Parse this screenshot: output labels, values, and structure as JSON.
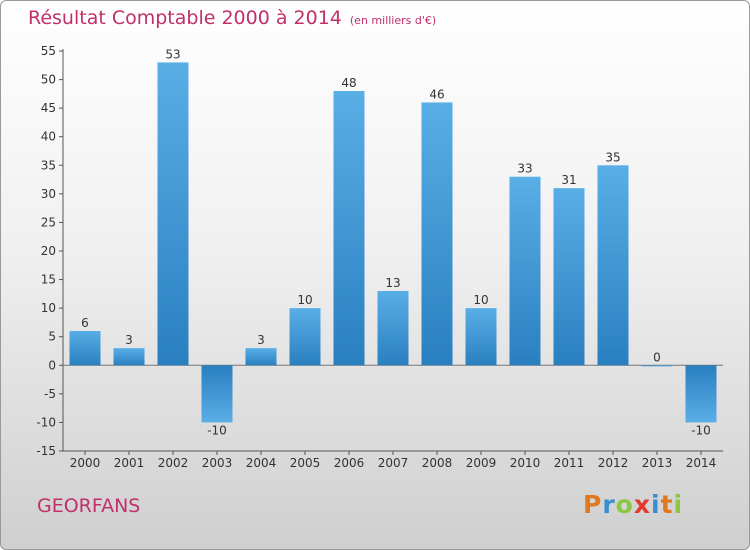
{
  "title": "Résultat Comptable 2000 à 2014",
  "subtitle": "(en milliers d'€)",
  "commune": "GEORFANS",
  "logo": {
    "letters": [
      "P",
      "r",
      "o",
      "x",
      "i",
      "t",
      "i"
    ],
    "colors": [
      "#e07820",
      "#3a8ed0",
      "#8dc63f",
      "#e23a2e",
      "#3a8ed0",
      "#e07820",
      "#8dc63f"
    ]
  },
  "colors": {
    "bar_light": "#5aaee6",
    "bar_dark": "#2a7fc0",
    "title": "#c0306a"
  },
  "chart_data": {
    "type": "bar",
    "title": "Résultat Comptable 2000 à 2014",
    "xlabel": "",
    "ylabel": "",
    "ylim": [
      -15,
      55
    ],
    "yticks": [
      -15,
      -10,
      -5,
      0,
      5,
      10,
      15,
      20,
      25,
      30,
      35,
      40,
      45,
      50,
      55
    ],
    "ytick_labels": [
      "-15",
      "-10",
      "-5",
      "0",
      "5",
      "10",
      "15",
      "20",
      "25",
      "30",
      "35",
      "40",
      "45",
      "50",
      "55"
    ],
    "categories": [
      "2000",
      "2001",
      "2002",
      "2003",
      "2004",
      "2005",
      "2006",
      "2007",
      "2008",
      "2009",
      "2010",
      "2011",
      "2012",
      "2013",
      "2014"
    ],
    "values": [
      6,
      3,
      53,
      -10,
      3,
      10,
      48,
      13,
      46,
      10,
      33,
      31,
      35,
      0,
      -10
    ],
    "value_labels": [
      "6",
      "3",
      "53",
      "-10",
      "3",
      "10",
      "48",
      "13",
      "46",
      "10",
      "33",
      "31",
      "35",
      "0",
      "-10"
    ],
    "grid": false
  }
}
